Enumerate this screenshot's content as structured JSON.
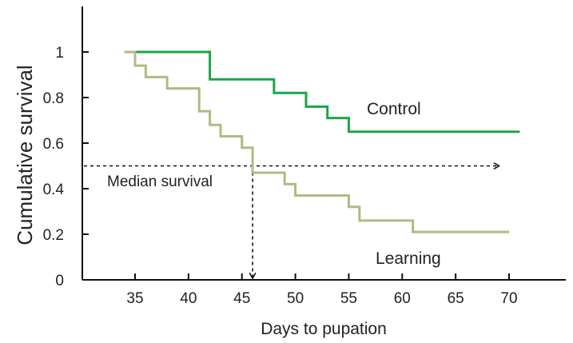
{
  "chart_data": {
    "type": "line",
    "title": "",
    "xlabel": "Days to pupation",
    "ylabel": "Cumulative survival",
    "xlim": [
      30,
      75
    ],
    "ylim": [
      0,
      1.1
    ],
    "x_ticks": [
      35,
      40,
      45,
      50,
      55,
      60,
      65,
      70
    ],
    "y_ticks": [
      0,
      0.2,
      0.4,
      0.6,
      0.8,
      1
    ],
    "y_tick_labels": [
      "0",
      "0.2",
      "0.4",
      "0.6",
      "0.8",
      "1"
    ],
    "grid": false,
    "series": [
      {
        "name": "Control",
        "color": "#1aa64a",
        "step": true,
        "x": [
          34,
          42,
          48,
          51,
          53,
          55,
          71
        ],
        "y": [
          1.0,
          0.88,
          0.82,
          0.76,
          0.71,
          0.65,
          0.65
        ]
      },
      {
        "name": "Learning",
        "color": "#b5b883",
        "step": true,
        "x": [
          34,
          35,
          36,
          38,
          41,
          42,
          43,
          45,
          46,
          49,
          50,
          55,
          56,
          61,
          70
        ],
        "y": [
          1.0,
          0.94,
          0.89,
          0.84,
          0.74,
          0.68,
          0.63,
          0.58,
          0.47,
          0.42,
          0.37,
          0.32,
          0.26,
          0.21,
          0.21
        ]
      }
    ],
    "annotations": {
      "median_label": "Median survival",
      "median_y": 0.5,
      "median_x": 46,
      "arrow_end_x": 69
    }
  }
}
